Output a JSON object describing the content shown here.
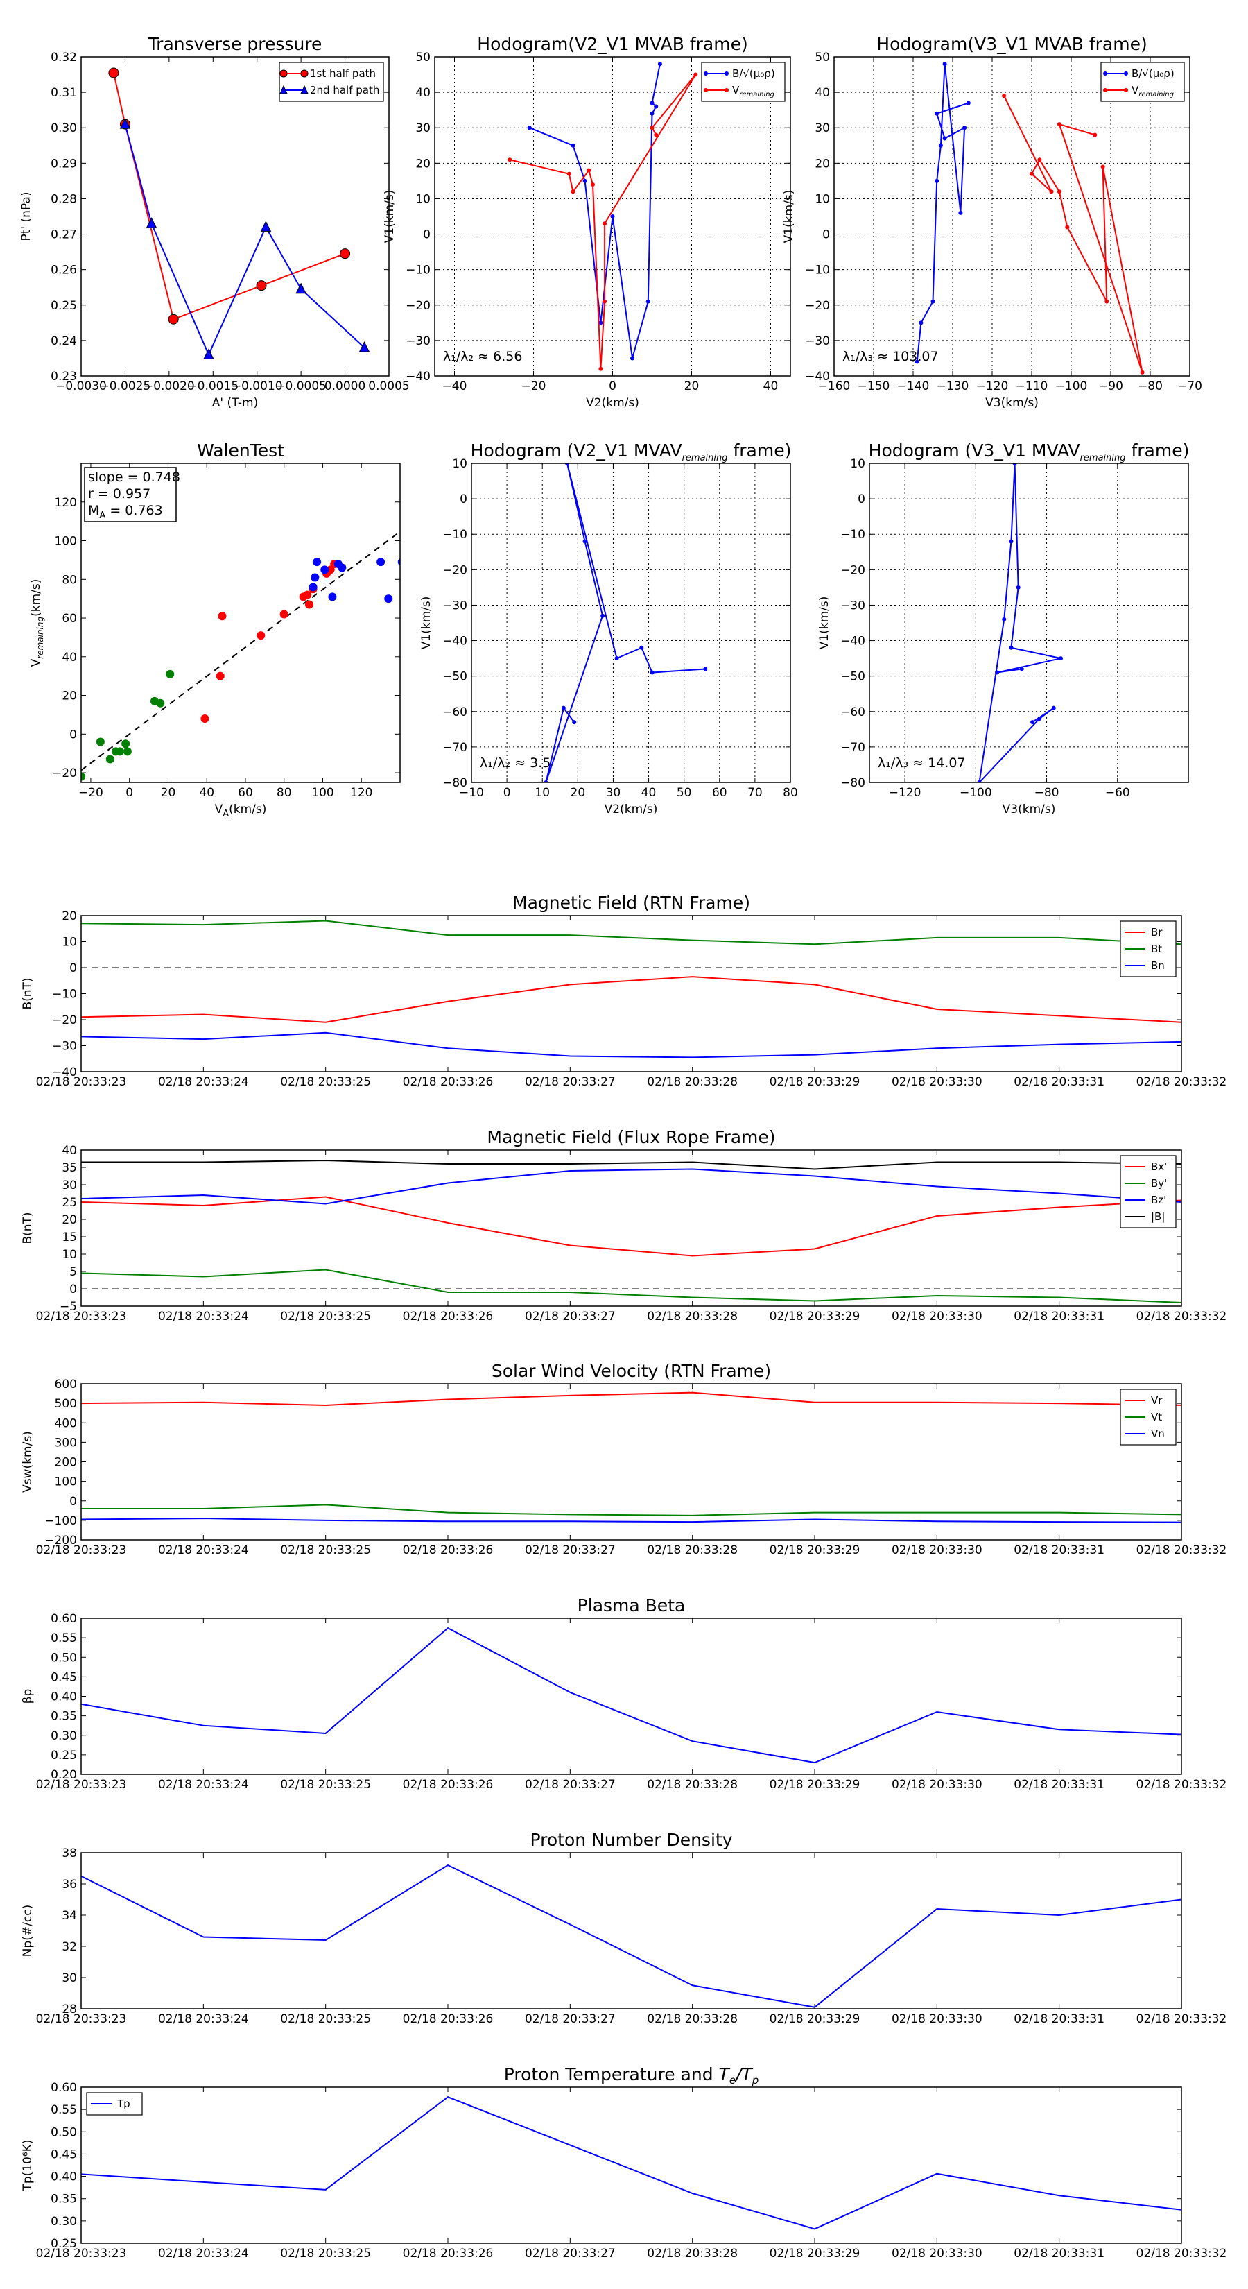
{
  "figure": {
    "page_title": "",
    "time_ticks": [
      "02/18 20:33:23",
      "02/18 20:33:24",
      "02/18 20:33:25",
      "02/18 20:33:26",
      "02/18 20:33:27",
      "02/18 20:33:28",
      "02/18 20:33:29",
      "02/18 20:33:30",
      "02/18 20:33:31",
      "02/18 20:33:32"
    ]
  },
  "chart_data": [
    {
      "id": "pt",
      "type": "line",
      "title": "Transverse pressure",
      "xlabel": "A' (T-m)",
      "ylabel": "Pt' (nPa)",
      "xlim": [
        -0.003,
        0.0005
      ],
      "ylim": [
        0.23,
        0.32
      ],
      "xticks": [
        -0.003,
        -0.0025,
        -0.002,
        -0.0015,
        -0.001,
        -0.0005,
        0.0,
        0.0005
      ],
      "xtick_labels": [
        "−0.0030",
        "−0.0025",
        "−0.0020",
        "−0.0015",
        "−0.0010",
        "−0.0005",
        "0.0000",
        "0.0005"
      ],
      "yticks": [
        0.23,
        0.24,
        0.25,
        0.26,
        0.27,
        0.28,
        0.29,
        0.3,
        0.31,
        0.32
      ],
      "ytick_labels": [
        "0.23",
        "0.24",
        "0.25",
        "0.26",
        "0.27",
        "0.28",
        "0.29",
        "0.30",
        "0.31",
        "0.32"
      ],
      "legend_pos": "top-right",
      "series": [
        {
          "name": "1st half path",
          "color": "#ff0000",
          "marker": "circle",
          "x": [
            -0.00263,
            -0.0025,
            -0.00195,
            -0.00095,
            0.0
          ],
          "y": [
            0.3155,
            0.301,
            0.246,
            0.2555,
            0.2645
          ]
        },
        {
          "name": "2nd half path",
          "color": "#0000ff",
          "marker": "triangle",
          "x": [
            -0.0025,
            -0.0022,
            -0.00155,
            -0.0009,
            -0.0005,
            0.00022
          ],
          "y": [
            0.301,
            0.273,
            0.236,
            0.272,
            0.2545,
            0.238
          ]
        }
      ]
    },
    {
      "id": "h21",
      "type": "line",
      "title": "Hodogram(V2_V1 MVAB frame)",
      "xlabel": "V2(km/s)",
      "ylabel": "V1(km/s)",
      "xlim": [
        -45,
        45
      ],
      "ylim": [
        -40,
        50
      ],
      "xticks": [
        -40,
        -20,
        0,
        20,
        40
      ],
      "xtick_labels": [
        "−40",
        "−20",
        "0",
        "20",
        "40"
      ],
      "yticks": [
        -40,
        -30,
        -20,
        -10,
        0,
        10,
        20,
        30,
        40,
        50
      ],
      "ytick_labels": [
        "−40",
        "−30",
        "−20",
        "−10",
        "0",
        "10",
        "20",
        "30",
        "40",
        "50"
      ],
      "grid": true,
      "legend_pos": "top-right",
      "annotation": "λ₁/λ₂ ≈ 6.56",
      "series": [
        {
          "name": "B/√(μ₀ρ)",
          "color": "#0000ff",
          "x": [
            -21,
            -10,
            -7,
            -3,
            0,
            5,
            9,
            10,
            11,
            10,
            12
          ],
          "y": [
            30,
            25,
            15,
            -25,
            5,
            -35,
            -19,
            34,
            36,
            37,
            48
          ]
        },
        {
          "name": "V_remaining",
          "color": "#ff0000",
          "x": [
            -26,
            -11,
            -10,
            -6,
            -5,
            -3,
            -2,
            -2,
            21,
            10,
            11
          ],
          "y": [
            21,
            17,
            12,
            18,
            14,
            -38,
            -19,
            3,
            45,
            30,
            28
          ]
        }
      ]
    },
    {
      "id": "h31",
      "type": "line",
      "title": "Hodogram(V3_V1 MVAB frame)",
      "xlabel": "V3(km/s)",
      "ylabel": "V1(km/s)",
      "xlim": [
        -160,
        -70
      ],
      "ylim": [
        -40,
        50
      ],
      "xticks": [
        -160,
        -150,
        -140,
        -130,
        -120,
        -110,
        -100,
        -90,
        -80,
        -70
      ],
      "xtick_labels": [
        "−160",
        "−150",
        "−140",
        "−130",
        "−120",
        "−110",
        "−100",
        "−90",
        "−80",
        "−70"
      ],
      "yticks": [
        -40,
        -30,
        -20,
        -10,
        0,
        10,
        20,
        30,
        40,
        50
      ],
      "ytick_labels": [
        "−40",
        "−30",
        "−20",
        "−10",
        "0",
        "10",
        "20",
        "30",
        "40",
        "50"
      ],
      "grid": true,
      "legend_pos": "top-right",
      "annotation": "λ₁/λ₃ ≈ 103.07",
      "series": [
        {
          "name": "B/√(μ₀ρ)",
          "color": "#0000ff",
          "x": [
            -139,
            -138,
            -135,
            -134,
            -133,
            -132,
            -128,
            -127,
            -132,
            -134,
            -126
          ],
          "y": [
            -36,
            -25,
            -19,
            15,
            25,
            48,
            6,
            30,
            27,
            34,
            37
          ]
        },
        {
          "name": "V_remaining",
          "color": "#ff0000",
          "x": [
            -117,
            -105,
            -110,
            -108,
            -103,
            -101,
            -91,
            -92,
            -82,
            -103,
            -94
          ],
          "y": [
            39,
            12,
            17,
            21,
            12,
            2,
            -19,
            19,
            -39,
            31,
            28
          ]
        }
      ]
    },
    {
      "id": "walen",
      "type": "scatter",
      "title": "WalenTest",
      "xlabel": "V_A(km/s)",
      "ylabel": "V_remaining(km/s)",
      "xlim": [
        -25,
        140
      ],
      "ylim": [
        -25,
        140
      ],
      "xticks": [
        -20,
        0,
        20,
        40,
        60,
        80,
        100,
        120
      ],
      "xtick_labels": [
        "−20",
        "0",
        "20",
        "40",
        "60",
        "80",
        "100",
        "120"
      ],
      "yticks": [
        -20,
        0,
        20,
        40,
        60,
        80,
        100,
        120
      ],
      "ytick_labels": [
        "−20",
        "0",
        "20",
        "40",
        "60",
        "80",
        "100",
        "120"
      ],
      "stats": [
        "slope = 0.748",
        "r = 0.957",
        "M_A = 0.763"
      ],
      "fit_line": {
        "slope": 0.748,
        "intercept": 0,
        "style": "dashed"
      },
      "series": [
        {
          "name": "green",
          "color": "#008000",
          "x": [
            -25,
            -15,
            -10,
            -7,
            -5,
            -2,
            -1,
            13,
            16,
            21
          ],
          "y": [
            -22,
            -4,
            -13,
            -9,
            -9,
            -5,
            -9,
            17,
            16,
            31
          ]
        },
        {
          "name": "red",
          "color": "#ff0000",
          "x": [
            39,
            47,
            48,
            68,
            80,
            90,
            92,
            93,
            95,
            102,
            104,
            106
          ],
          "y": [
            8,
            30,
            61,
            51,
            62,
            71,
            72,
            67,
            75,
            83,
            85,
            88
          ]
        },
        {
          "name": "blue",
          "color": "#0000ff",
          "x": [
            95,
            96,
            97,
            101,
            105,
            108,
            110,
            130,
            134,
            141
          ],
          "y": [
            76,
            81,
            89,
            85,
            71,
            88,
            86,
            89,
            70,
            89
          ]
        }
      ]
    },
    {
      "id": "h21r",
      "type": "line",
      "title": "Hodogram (V2_V1 MVAV_remaining frame)",
      "xlabel": "V2(km/s)",
      "ylabel": "V1(km/s)",
      "xlim": [
        -10,
        80
      ],
      "ylim": [
        -80,
        10
      ],
      "xticks": [
        -10,
        0,
        10,
        20,
        30,
        40,
        50,
        60,
        70,
        80
      ],
      "xtick_labels": [
        "−10",
        "0",
        "10",
        "20",
        "30",
        "40",
        "50",
        "60",
        "70",
        "80"
      ],
      "yticks": [
        -80,
        -70,
        -60,
        -50,
        -40,
        -30,
        -20,
        -10,
        0,
        10
      ],
      "ytick_labels": [
        "−80",
        "−70",
        "−60",
        "−50",
        "−40",
        "−30",
        "−20",
        "−10",
        "0",
        "10"
      ],
      "grid": true,
      "annotation": "λ₁/λ₂ ≈ 3.5",
      "series": [
        {
          "name": "B/√(μ₀ρ)",
          "color": "#0000ff",
          "x": [
            19,
            16,
            11,
            27,
            22,
            17,
            31,
            38,
            41,
            56
          ],
          "y": [
            -63,
            -59,
            -80,
            -33,
            -12,
            10,
            -45,
            -42,
            -49,
            -48
          ]
        }
      ]
    },
    {
      "id": "h31r",
      "type": "line",
      "title": "Hodogram (V3_V1 MVAV_remaining frame)",
      "xlabel": "V3(km/s)",
      "ylabel": "V1(km/s)",
      "xlim": [
        -130,
        -40
      ],
      "ylim": [
        -80,
        10
      ],
      "xticks": [
        -120,
        -100,
        -80,
        -60
      ],
      "xtick_labels": [
        "−120",
        "−100",
        "−80",
        "−60"
      ],
      "yticks": [
        -80,
        -70,
        -60,
        -50,
        -40,
        -30,
        -20,
        -10,
        0,
        10
      ],
      "ytick_labels": [
        "−80",
        "−70",
        "−60",
        "−50",
        "−40",
        "−30",
        "−20",
        "−10",
        "0",
        "10"
      ],
      "grid": true,
      "annotation": "λ₁/λ₃ ≈ 14.07",
      "series": [
        {
          "name": "B/√(μ₀ρ)",
          "color": "#0000ff",
          "x": [
            -84,
            -78,
            -82,
            -99,
            -92,
            -90,
            -89,
            -88,
            -90,
            -76,
            -94,
            -87
          ],
          "y": [
            -63,
            -59,
            -62,
            -80,
            -34,
            -12,
            10,
            -25,
            -42,
            -45,
            -49,
            -48
          ]
        }
      ]
    },
    {
      "id": "mag_rtn",
      "type": "line",
      "title": "Magnetic Field (RTN Frame)",
      "xlabel": "",
      "ylabel": "B(nT)",
      "ylim": [
        -40,
        20
      ],
      "yticks": [
        -40,
        -30,
        -20,
        -10,
        0,
        10,
        20
      ],
      "ytick_labels": [
        "−40",
        "−30",
        "−20",
        "−10",
        "0",
        "10",
        "20"
      ],
      "zero_line": true,
      "legend_pos": "top-right",
      "series": [
        {
          "name": "Br",
          "color": "#ff0000",
          "values": [
            -19,
            -18,
            -21,
            -13,
            -6.5,
            -3.5,
            -6.5,
            -16,
            -18.5,
            -21
          ]
        },
        {
          "name": "Bt",
          "color": "#008000",
          "values": [
            17,
            16.5,
            18,
            12.5,
            12.5,
            10.5,
            9,
            11.5,
            11.5,
            9
          ]
        },
        {
          "name": "Bn",
          "color": "#0000ff",
          "values": [
            -26.5,
            -27.5,
            -25,
            -31,
            -34,
            -34.5,
            -33.5,
            -31,
            -29.5,
            -28.5
          ]
        }
      ]
    },
    {
      "id": "mag_fr",
      "type": "line",
      "title": "Magnetic Field (Flux Rope Frame)",
      "xlabel": "",
      "ylabel": "B(nT)",
      "ylim": [
        -5,
        40
      ],
      "yticks": [
        -5,
        0,
        5,
        10,
        15,
        20,
        25,
        30,
        35,
        40
      ],
      "ytick_labels": [
        "−5",
        "0",
        "5",
        "10",
        "15",
        "20",
        "25",
        "30",
        "35",
        "40"
      ],
      "zero_line": true,
      "legend_pos": "top-right",
      "series": [
        {
          "name": "Bx'",
          "color": "#ff0000",
          "values": [
            25,
            24,
            26.5,
            19,
            12.5,
            9.5,
            11.5,
            21,
            23.5,
            25.5
          ]
        },
        {
          "name": "By'",
          "color": "#008000",
          "values": [
            4.5,
            3.5,
            5.5,
            -1,
            -1,
            -2.5,
            -3.5,
            -2,
            -2.5,
            -4
          ]
        },
        {
          "name": "Bz'",
          "color": "#0000ff",
          "values": [
            26,
            27,
            24.5,
            30.5,
            34,
            34.5,
            32.5,
            29.5,
            27.5,
            25
          ]
        },
        {
          "name": "|B|",
          "color": "#000000",
          "values": [
            36.5,
            36.5,
            37,
            36,
            36,
            36.5,
            34.5,
            36.5,
            36.5,
            36
          ]
        }
      ]
    },
    {
      "id": "vel",
      "type": "line",
      "title": "Solar Wind Velocity (RTN Frame)",
      "xlabel": "",
      "ylabel": "Vsw(km/s)",
      "ylim": [
        -200,
        600
      ],
      "yticks": [
        -200,
        -100,
        0,
        100,
        200,
        300,
        400,
        500,
        600
      ],
      "ytick_labels": [
        "−200",
        "−100",
        "0",
        "100",
        "200",
        "300",
        "400",
        "500",
        "600"
      ],
      "legend_pos": "top-right",
      "series": [
        {
          "name": "Vr",
          "color": "#ff0000",
          "values": [
            500,
            505,
            490,
            520,
            540,
            555,
            505,
            505,
            500,
            490
          ]
        },
        {
          "name": "Vt",
          "color": "#008000",
          "values": [
            -40,
            -40,
            -20,
            -60,
            -70,
            -75,
            -60,
            -60,
            -60,
            -70
          ]
        },
        {
          "name": "Vn",
          "color": "#0000ff",
          "values": [
            -95,
            -90,
            -100,
            -105,
            -105,
            -108,
            -95,
            -105,
            -108,
            -110
          ]
        }
      ]
    },
    {
      "id": "beta",
      "type": "line",
      "title": "Plasma Beta",
      "xlabel": "",
      "ylabel": "βp",
      "ylim": [
        0.2,
        0.6
      ],
      "yticks": [
        0.2,
        0.25,
        0.3,
        0.35,
        0.4,
        0.45,
        0.5,
        0.55,
        0.6
      ],
      "ytick_labels": [
        "0.20",
        "0.25",
        "0.30",
        "0.35",
        "0.40",
        "0.45",
        "0.50",
        "0.55",
        "0.60"
      ],
      "series": [
        {
          "name": "beta",
          "color": "#0000ff",
          "values": [
            0.38,
            0.325,
            0.305,
            0.575,
            0.41,
            0.285,
            0.23,
            0.36,
            0.315,
            0.302
          ]
        }
      ]
    },
    {
      "id": "np",
      "type": "line",
      "title": "Proton Number Density",
      "xlabel": "",
      "ylabel": "Np(#/cc)",
      "ylim": [
        28,
        38
      ],
      "yticks": [
        28,
        30,
        32,
        34,
        36,
        38
      ],
      "ytick_labels": [
        "28",
        "30",
        "32",
        "34",
        "36",
        "38"
      ],
      "series": [
        {
          "name": "Np",
          "color": "#0000ff",
          "values": [
            36.5,
            32.6,
            32.4,
            37.2,
            33.4,
            29.5,
            28.1,
            34.4,
            34.0,
            35.0
          ]
        }
      ]
    },
    {
      "id": "tp",
      "type": "line",
      "title": "Proton Temperature and Te/Tp",
      "xlabel": "",
      "ylabel": "Tp(10⁶K)",
      "ylim": [
        0.25,
        0.6
      ],
      "yticks": [
        0.25,
        0.3,
        0.35,
        0.4,
        0.45,
        0.5,
        0.55,
        0.6
      ],
      "ytick_labels": [
        "0.25",
        "0.30",
        "0.35",
        "0.40",
        "0.45",
        "0.50",
        "0.55",
        "0.60"
      ],
      "legend_pos": "top-left",
      "series": [
        {
          "name": "Tp",
          "color": "#0000ff",
          "values": [
            0.405,
            0.387,
            0.37,
            0.578,
            0.47,
            0.362,
            0.282,
            0.406,
            0.357,
            0.325
          ]
        }
      ]
    }
  ]
}
